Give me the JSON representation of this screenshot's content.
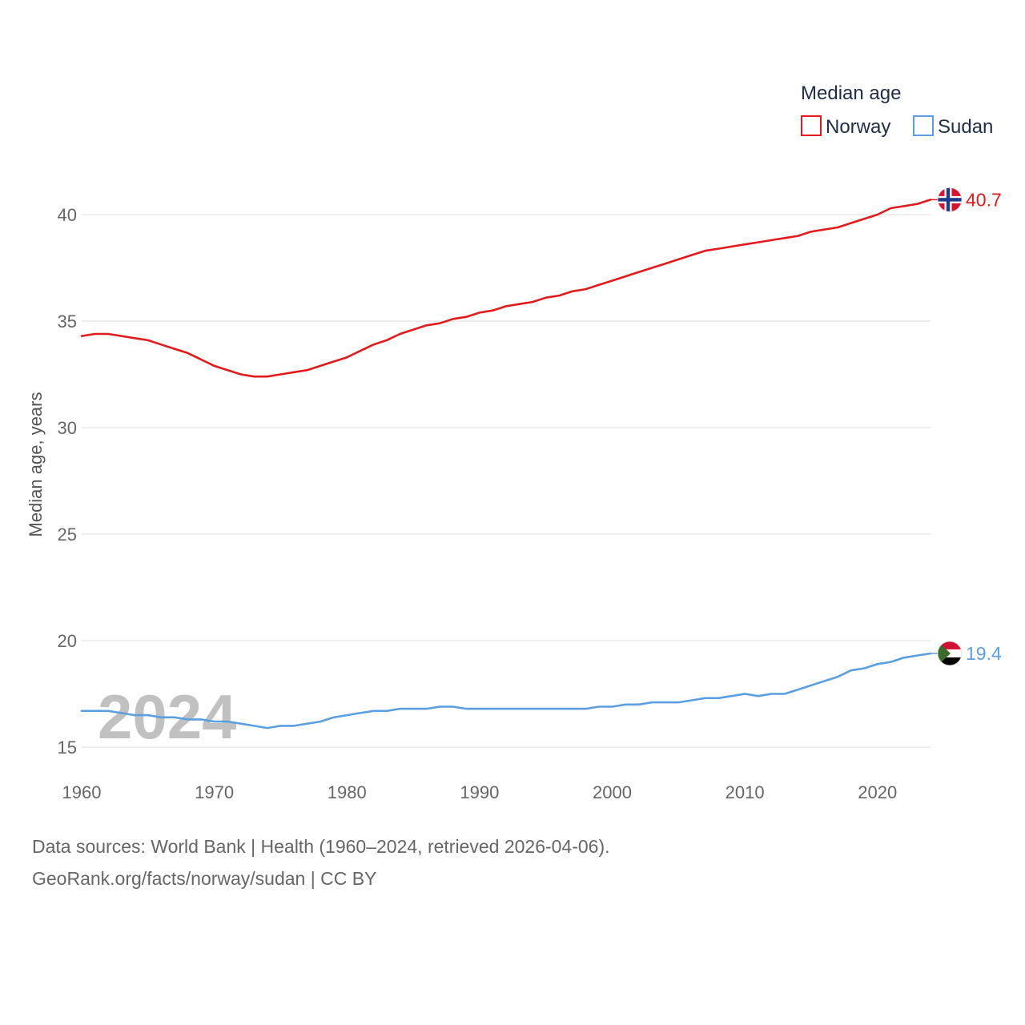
{
  "chart_data": {
    "type": "line",
    "ylabel": "Median age, years",
    "xlim": [
      1960,
      2024
    ],
    "ylim": [
      15,
      42
    ],
    "yticks": [
      15,
      20,
      25,
      30,
      35,
      40
    ],
    "xticks": [
      1960,
      1970,
      1980,
      1990,
      2000,
      2010,
      2020
    ],
    "grid": true,
    "legend": {
      "title": "Median age",
      "position": "top-right"
    },
    "year_label": "2024",
    "x": [
      1960,
      1961,
      1962,
      1963,
      1964,
      1965,
      1966,
      1967,
      1968,
      1969,
      1970,
      1971,
      1972,
      1973,
      1974,
      1975,
      1976,
      1977,
      1978,
      1979,
      1980,
      1981,
      1982,
      1983,
      1984,
      1985,
      1986,
      1987,
      1988,
      1989,
      1990,
      1991,
      1992,
      1993,
      1994,
      1995,
      1996,
      1997,
      1998,
      1999,
      2000,
      2001,
      2002,
      2003,
      2004,
      2005,
      2006,
      2007,
      2008,
      2009,
      2010,
      2011,
      2012,
      2013,
      2014,
      2015,
      2016,
      2017,
      2018,
      2019,
      2020,
      2021,
      2022,
      2023,
      2024
    ],
    "series": [
      {
        "name": "Norway",
        "color": "#e31a1c",
        "end_label": "40.7",
        "flag": "norway-flag-icon",
        "values": [
          34.3,
          34.4,
          34.4,
          34.3,
          34.2,
          34.1,
          33.9,
          33.7,
          33.5,
          33.2,
          32.9,
          32.7,
          32.5,
          32.4,
          32.4,
          32.5,
          32.6,
          32.7,
          32.9,
          33.1,
          33.3,
          33.6,
          33.9,
          34.1,
          34.4,
          34.6,
          34.8,
          34.9,
          35.1,
          35.2,
          35.4,
          35.5,
          35.7,
          35.8,
          35.9,
          36.1,
          36.2,
          36.4,
          36.5,
          36.7,
          36.9,
          37.1,
          37.3,
          37.5,
          37.7,
          37.9,
          38.1,
          38.3,
          38.4,
          38.5,
          38.6,
          38.7,
          38.8,
          38.9,
          39.0,
          39.2,
          39.3,
          39.4,
          39.6,
          39.8,
          40.0,
          40.3,
          40.4,
          40.5,
          40.7
        ]
      },
      {
        "name": "Sudan",
        "color": "#5b9fe0",
        "end_label": "19.4",
        "flag": "sudan-flag-icon",
        "values": [
          16.7,
          16.7,
          16.7,
          16.6,
          16.5,
          16.5,
          16.4,
          16.4,
          16.3,
          16.3,
          16.2,
          16.2,
          16.1,
          16.0,
          15.9,
          16.0,
          16.0,
          16.1,
          16.2,
          16.4,
          16.5,
          16.6,
          16.7,
          16.7,
          16.8,
          16.8,
          16.8,
          16.9,
          16.9,
          16.8,
          16.8,
          16.8,
          16.8,
          16.8,
          16.8,
          16.8,
          16.8,
          16.8,
          16.8,
          16.9,
          16.9,
          17.0,
          17.0,
          17.1,
          17.1,
          17.1,
          17.2,
          17.3,
          17.3,
          17.4,
          17.5,
          17.4,
          17.5,
          17.5,
          17.7,
          17.9,
          18.1,
          18.3,
          18.6,
          18.7,
          18.9,
          19.0,
          19.2,
          19.3,
          19.4
        ]
      }
    ]
  },
  "footer": {
    "line1": "Data sources: World Bank | Health (1960–2024, retrieved 2026-04-06).",
    "line2": "GeoRank.org/facts/norway/sudan | CC BY"
  }
}
